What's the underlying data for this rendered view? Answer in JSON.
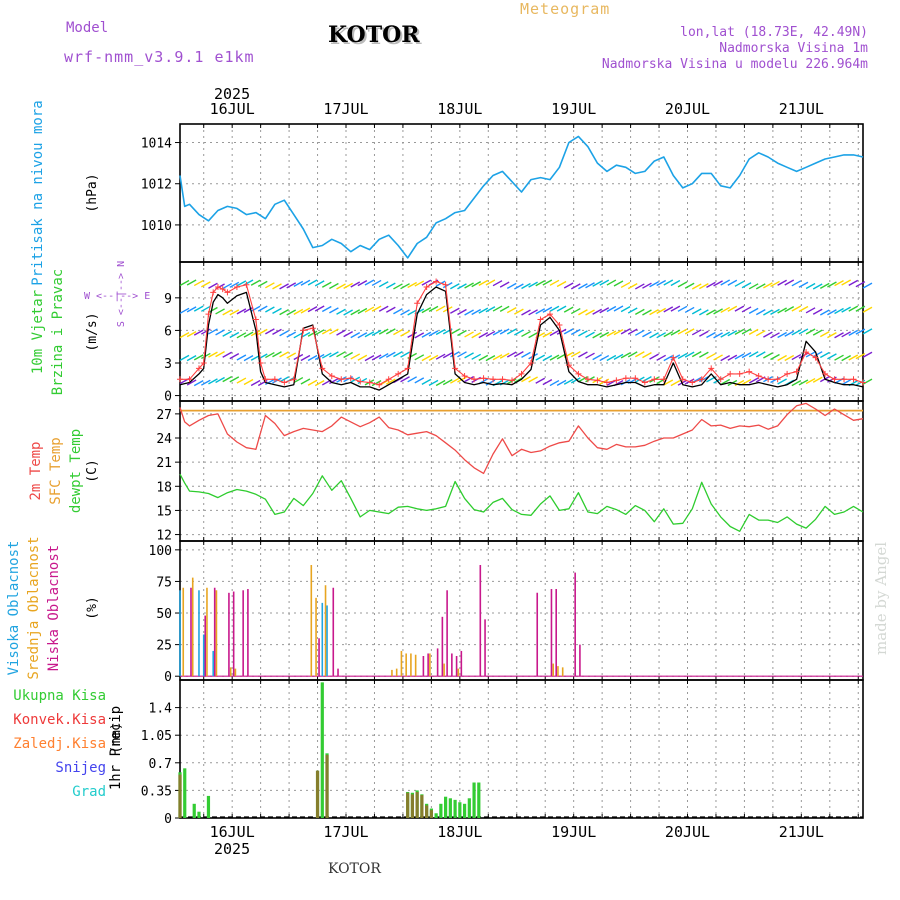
{
  "header": {
    "model_label": "Model",
    "model_name": "wrf-nmm_v3.9.1 e1km",
    "station": "KOTOR",
    "title": "Meteogram",
    "coords": "lon,lat (18.73E, 42.49N)",
    "elevation": "Nadmorska Visina 1m",
    "model_elevation": "Nadmorska Visina u modelu 226.964m",
    "year": "2025",
    "watermark": "made by Angel",
    "footer_station": "KOTOR"
  },
  "colors": {
    "pressure": "#1ca2e6",
    "wind_speed": "#000000",
    "wind_gust": "#ff4040",
    "temp_2m": "#ee4a48",
    "sfc_temp": "#e8a030",
    "dewpoint": "#2ecc2e",
    "cloud_high": "#21a4e0",
    "cloud_mid": "#e8a520",
    "cloud_low": "#c8188c",
    "precip_total": "#33cc33",
    "precip_conv": "#ee3a3a",
    "precip_strat": "#ff8030",
    "snow": "#4444ee",
    "hail": "#22cccc",
    "grid": "#999999"
  },
  "chart_data": [
    {
      "type": "line",
      "panel": "pressure",
      "ylabel_main": "Pritisak na nivou mora",
      "ylabel_unit": "(hPa)",
      "yticks": [
        1010,
        1012,
        1014
      ],
      "ylim": [
        1008.2,
        1014.9
      ],
      "x_unit": "hours from 2025-07-15 13:00",
      "xlim": [
        0,
        144
      ],
      "x": [
        0,
        1,
        2,
        4,
        6,
        8,
        10,
        12,
        14,
        16,
        18,
        20,
        22,
        24,
        26,
        28,
        30,
        32,
        34,
        36,
        38,
        40,
        42,
        44,
        46,
        48,
        50,
        52,
        54,
        56,
        58,
        60,
        62,
        64,
        66,
        68,
        70,
        72,
        74,
        76,
        78,
        80,
        82,
        84,
        86,
        88,
        90,
        92,
        94,
        96,
        98,
        100,
        102,
        104,
        106,
        108,
        110,
        112,
        114,
        116,
        118,
        120,
        122,
        124,
        126,
        128,
        130,
        132,
        134,
        136,
        138,
        140,
        142,
        144
      ],
      "series": [
        {
          "name": "",
          "values": [
            1012.4,
            1010.9,
            1011.0,
            1010.5,
            1010.2,
            1010.7,
            1010.9,
            1010.8,
            1010.5,
            1010.6,
            1010.3,
            1011.0,
            1011.2,
            1010.5,
            1009.8,
            1008.9,
            1009.0,
            1009.3,
            1009.1,
            1008.7,
            1009.0,
            1008.8,
            1009.3,
            1009.5,
            1009.0,
            1008.4,
            1009.1,
            1009.4,
            1010.1,
            1010.3,
            1010.6,
            1010.7,
            1011.3,
            1011.9,
            1012.4,
            1012.6,
            1012.1,
            1011.6,
            1012.2,
            1012.3,
            1012.2,
            1012.8,
            1014.0,
            1014.3,
            1013.8,
            1013.0,
            1012.6,
            1012.9,
            1012.8,
            1012.5,
            1012.6,
            1013.1,
            1013.3,
            1012.4,
            1011.8,
            1012.0,
            1012.5,
            1012.5,
            1011.9,
            1011.8,
            1012.4,
            1013.2,
            1013.5,
            1013.3,
            1013.0,
            1012.8,
            1012.6,
            1012.8,
            1013.0,
            1013.2,
            1013.3,
            1013.4,
            1013.4,
            1013.3
          ]
        }
      ]
    },
    {
      "type": "line",
      "panel": "wind",
      "ylabel_main": "10m Vjetar",
      "ylabel_sub": "Brzina i Pravac",
      "ylabel_unit": "(m/s)",
      "compass": {
        "n": "N",
        "s": "S",
        "e": "E",
        "w": "W"
      },
      "yticks": [
        0,
        3,
        6,
        9
      ],
      "ylim": [
        -0.5,
        12.3
      ],
      "x": [
        0,
        2,
        4,
        5,
        6,
        7,
        8,
        9,
        10,
        12,
        14,
        16,
        17,
        18,
        20,
        22,
        24,
        26,
        28,
        30,
        32,
        34,
        36,
        38,
        40,
        42,
        44,
        46,
        48,
        50,
        52,
        54,
        56,
        58,
        60,
        62,
        64,
        66,
        68,
        70,
        72,
        74,
        76,
        78,
        80,
        82,
        84,
        86,
        88,
        90,
        92,
        94,
        96,
        98,
        100,
        102,
        104,
        106,
        108,
        110,
        112,
        114,
        116,
        118,
        120,
        122,
        124,
        126,
        128,
        130,
        132,
        134,
        136,
        138,
        140,
        142,
        144
      ],
      "series": [
        {
          "name": "",
          "values": [
            1.0,
            1.2,
            2.0,
            2.5,
            6.5,
            8.6,
            9.3,
            9.0,
            8.5,
            9.2,
            9.5,
            6.0,
            2.2,
            1.2,
            1.0,
            0.8,
            1.0,
            6.2,
            6.5,
            2.0,
            1.2,
            1.0,
            1.2,
            0.8,
            0.8,
            0.5,
            1.0,
            1.5,
            2.0,
            7.5,
            9.3,
            10.0,
            9.6,
            2.0,
            1.2,
            1.0,
            1.2,
            1.0,
            1.1,
            1.0,
            1.5,
            2.4,
            6.5,
            7.2,
            6.0,
            2.2,
            1.3,
            1.0,
            1.0,
            0.8,
            1.0,
            1.2,
            1.2,
            0.8,
            1.0,
            1.0,
            3.0,
            1.0,
            0.8,
            1.0,
            2.0,
            1.0,
            1.2,
            1.0,
            1.0,
            1.2,
            1.0,
            0.8,
            1.0,
            1.5,
            5.0,
            4.0,
            1.5,
            1.2,
            1.0,
            1.0,
            0.8
          ]
        },
        {
          "name": "",
          "values": [
            1.5,
            1.5,
            2.5,
            3.0,
            7.5,
            9.5,
            10.0,
            9.8,
            9.5,
            10.0,
            10.2,
            7.0,
            3.0,
            1.5,
            1.5,
            1.2,
            1.5,
            6.0,
            6.2,
            2.5,
            1.8,
            1.5,
            1.6,
            1.3,
            1.2,
            1.0,
            1.5,
            2.0,
            2.5,
            8.5,
            10.0,
            10.5,
            10.2,
            2.5,
            1.8,
            1.5,
            1.6,
            1.5,
            1.5,
            1.4,
            2.0,
            3.0,
            7.0,
            7.5,
            6.5,
            2.8,
            2.0,
            1.5,
            1.4,
            1.2,
            1.4,
            1.6,
            1.6,
            1.2,
            1.5,
            1.5,
            3.5,
            1.5,
            1.2,
            1.5,
            2.5,
            1.5,
            2.0,
            2.0,
            2.2,
            1.8,
            1.5,
            1.5,
            2.0,
            2.2,
            4.0,
            3.5,
            2.0,
            1.5,
            1.5,
            1.5,
            1.2
          ]
        }
      ]
    },
    {
      "type": "line",
      "panel": "temperature",
      "ylabel_a": "2m Temp",
      "ylabel_b": "SFC Temp",
      "ylabel_c": "dewpt Temp",
      "ylabel_unit": "(C)",
      "yticks": [
        12,
        15,
        18,
        21,
        24,
        27
      ],
      "ylim": [
        11.2,
        28.6
      ],
      "sfc_temp": 27.4,
      "x": [
        0,
        1,
        2,
        4,
        6,
        8,
        10,
        12,
        14,
        16,
        18,
        20,
        22,
        24,
        26,
        28,
        30,
        32,
        34,
        36,
        38,
        40,
        42,
        44,
        46,
        48,
        50,
        52,
        54,
        56,
        58,
        60,
        62,
        64,
        66,
        68,
        70,
        72,
        74,
        76,
        78,
        80,
        82,
        84,
        86,
        88,
        90,
        92,
        94,
        96,
        98,
        100,
        102,
        104,
        106,
        108,
        110,
        112,
        114,
        116,
        118,
        120,
        122,
        124,
        126,
        128,
        130,
        132,
        134,
        136,
        138,
        140,
        142,
        144
      ],
      "series": [
        {
          "name": "",
          "values": [
            27.8,
            26.0,
            25.5,
            26.2,
            26.8,
            27.0,
            24.5,
            23.5,
            22.8,
            22.6,
            26.8,
            25.8,
            24.3,
            24.8,
            25.2,
            25.0,
            24.8,
            25.5,
            26.6,
            26.0,
            25.4,
            25.9,
            26.6,
            25.3,
            25.0,
            24.4,
            24.6,
            24.8,
            24.3,
            23.4,
            22.5,
            21.3,
            20.3,
            19.6,
            22.0,
            23.9,
            21.8,
            22.6,
            22.2,
            22.4,
            23.0,
            23.4,
            23.6,
            25.5,
            24.0,
            22.8,
            22.6,
            23.2,
            22.9,
            22.9,
            23.1,
            23.6,
            24.0,
            24.0,
            24.5,
            25.0,
            26.3,
            25.5,
            25.6,
            25.2,
            25.5,
            25.4,
            25.6,
            25.1,
            25.5,
            26.9,
            28.0,
            28.3,
            27.6,
            26.8,
            27.6,
            26.9,
            26.2,
            26.4
          ]
        },
        {
          "name": "",
          "values": [
            19.5,
            18.4,
            17.4,
            17.3,
            17.1,
            16.6,
            17.2,
            17.6,
            17.4,
            17.0,
            16.4,
            14.5,
            14.8,
            16.5,
            15.6,
            17.1,
            19.3,
            17.5,
            18.7,
            16.5,
            14.2,
            15.0,
            14.8,
            14.6,
            15.4,
            15.5,
            15.2,
            15.0,
            15.2,
            15.5,
            18.6,
            16.5,
            15.1,
            14.8,
            16.0,
            16.5,
            15.1,
            14.5,
            14.4,
            15.8,
            16.8,
            15.0,
            15.2,
            17.2,
            14.8,
            14.6,
            15.5,
            15.1,
            14.5,
            15.6,
            15.0,
            13.6,
            15.2,
            13.3,
            13.4,
            15.2,
            18.5,
            15.8,
            14.2,
            13.0,
            12.4,
            14.5,
            13.8,
            13.8,
            13.5,
            14.2,
            13.3,
            12.8,
            13.9,
            15.5,
            14.5,
            14.8,
            15.5,
            14.8
          ]
        }
      ]
    },
    {
      "type": "bar",
      "panel": "cloud",
      "ylabel_a": "Visoka Oblacnost",
      "ylabel_b": "Srednja Oblacnost",
      "ylabel_c": "Niska Oblacnost",
      "ylabel_unit": "(%)",
      "yticks": [
        0,
        25,
        50,
        75,
        100
      ],
      "ylim": [
        -3,
        107
      ],
      "high": [
        [
          0,
          68
        ],
        [
          4,
          68
        ],
        [
          5,
          33
        ],
        [
          7,
          20
        ],
        [
          30,
          58
        ],
        [
          31,
          56
        ]
      ],
      "mid": [
        [
          1,
          70
        ],
        [
          3,
          78
        ],
        [
          6,
          70
        ],
        [
          8,
          68
        ],
        [
          11,
          7
        ],
        [
          12,
          6
        ],
        [
          28,
          88
        ],
        [
          29,
          62
        ],
        [
          31,
          72
        ],
        [
          45,
          5
        ],
        [
          46,
          6
        ],
        [
          47,
          20
        ],
        [
          48,
          18
        ],
        [
          49,
          18
        ],
        [
          50,
          17
        ],
        [
          53,
          18
        ],
        [
          56,
          10
        ],
        [
          59,
          6
        ],
        [
          79,
          10
        ],
        [
          80,
          8
        ],
        [
          81,
          7
        ]
      ],
      "low": [
        [
          2,
          70
        ],
        [
          5,
          48
        ],
        [
          7,
          70
        ],
        [
          10,
          66
        ],
        [
          11,
          67
        ],
        [
          13,
          68
        ],
        [
          14,
          69
        ],
        [
          29,
          30
        ],
        [
          32,
          70
        ],
        [
          33,
          6
        ],
        [
          51,
          16
        ],
        [
          52,
          18
        ],
        [
          54,
          22
        ],
        [
          55,
          47
        ],
        [
          56,
          68
        ],
        [
          57,
          18
        ],
        [
          58,
          16
        ],
        [
          59,
          20
        ],
        [
          63,
          88
        ],
        [
          64,
          45
        ],
        [
          75,
          66
        ],
        [
          78,
          69
        ],
        [
          79,
          69
        ],
        [
          83,
          82
        ],
        [
          84,
          25
        ]
      ]
    },
    {
      "type": "bar",
      "panel": "precip",
      "ylabel_main": "1hr Precip",
      "ylabel_unit": "(mm)",
      "legend": [
        "Ukupna Kisa",
        "Konvek.Kisa",
        "Zaledj.Kisa",
        "Snijeg",
        "Grad"
      ],
      "yticks": [
        0,
        0.35,
        0.7,
        1.05,
        1.4
      ],
      "ylim": [
        0,
        1.75
      ],
      "total": [
        [
          0,
          0.58
        ],
        [
          1,
          0.63
        ],
        [
          3,
          0.18
        ],
        [
          4,
          0.08
        ],
        [
          6,
          0.28
        ],
        [
          29,
          0.6
        ],
        [
          30,
          1.72
        ],
        [
          31,
          0.82
        ],
        [
          48,
          0.33
        ],
        [
          49,
          0.32
        ],
        [
          50,
          0.35
        ],
        [
          51,
          0.3
        ],
        [
          52,
          0.18
        ],
        [
          53,
          0.12
        ],
        [
          54,
          0.06
        ],
        [
          55,
          0.18
        ],
        [
          56,
          0.27
        ],
        [
          57,
          0.25
        ],
        [
          58,
          0.23
        ],
        [
          59,
          0.2
        ],
        [
          60,
          0.18
        ],
        [
          61,
          0.25
        ],
        [
          62,
          0.45
        ],
        [
          63,
          0.45
        ]
      ],
      "conv": [
        [
          0,
          0.55
        ],
        [
          29,
          0.6
        ],
        [
          31,
          0.8
        ],
        [
          48,
          0.32
        ],
        [
          49,
          0.3
        ],
        [
          50,
          0.33
        ],
        [
          51,
          0.29
        ],
        [
          52,
          0.16
        ],
        [
          53,
          0.1
        ]
      ]
    }
  ],
  "x_axis": {
    "day_labels": [
      "16JUL",
      "17JUL",
      "18JUL",
      "19JUL",
      "20JUL",
      "21JUL"
    ],
    "day_hours": [
      11,
      35,
      59,
      83,
      107,
      131
    ],
    "tick_hours": [
      5,
      11,
      17,
      23,
      29,
      35,
      41,
      47,
      53,
      59,
      65,
      71,
      77,
      83,
      89,
      95,
      101,
      107,
      113,
      119,
      125,
      131,
      137,
      143
    ]
  }
}
